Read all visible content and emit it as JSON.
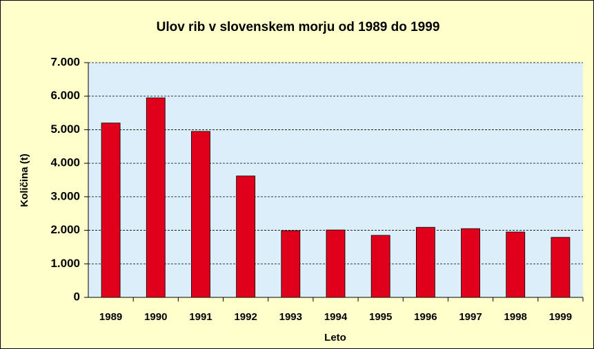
{
  "chart_data": {
    "type": "bar",
    "title": "Ulov rib v slovenskem morju od 1989 do 1999",
    "x_label": "Leto",
    "y_label": "Količina (t)",
    "categories": [
      "1989",
      "1990",
      "1991",
      "1992",
      "1993",
      "1994",
      "1995",
      "1996",
      "1997",
      "1998",
      "1999"
    ],
    "values": [
      5200,
      5950,
      4950,
      3620,
      1990,
      2010,
      1850,
      2090,
      2050,
      1950,
      1790
    ],
    "color": "#e0001b",
    "ylim": [
      0,
      7000
    ],
    "yticks": [
      0,
      {
        "value": 1000,
        "label": "1.000"
      },
      {
        "value": 2000,
        "label": "2.000"
      },
      {
        "value": 3000,
        "label": "3.000"
      },
      {
        "value": 4000,
        "label": "4.000"
      },
      {
        "value": 5000,
        "label": "5.000"
      },
      {
        "value": 6000,
        "label": "6.000"
      },
      {
        "value": 7000,
        "label": "7.000"
      }
    ],
    "grid": true
  }
}
